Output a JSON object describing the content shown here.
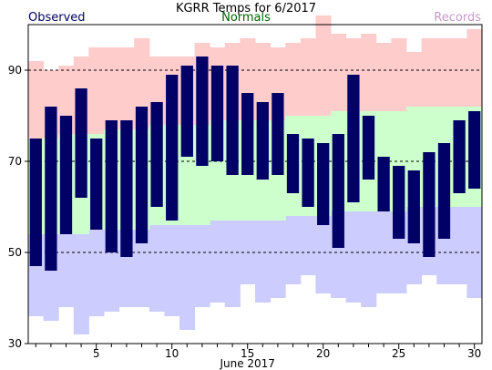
{
  "header": {
    "title": "KGRR Temps for 6/2017",
    "legend_observed": "Observed",
    "legend_normals": "Normals",
    "legend_records": "Records"
  },
  "colors": {
    "observed": "#000066",
    "normals_band": "#ccffcc",
    "record_high_band": "#ffcccc",
    "record_low_band": "#ccccff",
    "legend_observed": "#000066",
    "legend_normals": "#006600",
    "legend_records": "#cc99cc"
  },
  "chart_data": {
    "type": "bar",
    "title": "KGRR Temps for 6/2017",
    "xlabel": "June 2017",
    "ylabel": "",
    "xlim": [
      0.5,
      30.5
    ],
    "ylim": [
      30,
      100
    ],
    "x_ticks": [
      5,
      10,
      15,
      20,
      25,
      30
    ],
    "y_ticks": [
      30,
      50,
      70,
      90
    ],
    "gridlines_dashed_at": [
      50,
      70,
      90
    ],
    "days": [
      1,
      2,
      3,
      4,
      5,
      6,
      7,
      8,
      9,
      10,
      11,
      12,
      13,
      14,
      15,
      16,
      17,
      18,
      19,
      20,
      21,
      22,
      23,
      24,
      25,
      26,
      27,
      28,
      29,
      30
    ],
    "series": [
      {
        "name": "Observed high",
        "values": [
          75,
          82,
          80,
          86,
          75,
          79,
          79,
          82,
          83,
          89,
          91,
          93,
          91,
          91,
          85,
          83,
          85,
          76,
          75,
          74,
          76,
          89,
          80,
          71,
          69,
          68,
          72,
          74,
          79,
          81
        ]
      },
      {
        "name": "Observed low",
        "values": [
          47,
          46,
          54,
          62,
          55,
          50,
          49,
          52,
          60,
          57,
          71,
          69,
          70,
          67,
          67,
          66,
          67,
          63,
          60,
          56,
          51,
          61,
          66,
          59,
          53,
          52,
          49,
          53,
          63,
          64
        ]
      },
      {
        "name": "Normal high",
        "values": [
          75,
          75,
          76,
          76,
          76,
          77,
          77,
          77,
          78,
          78,
          78,
          78,
          79,
          79,
          79,
          79,
          79,
          80,
          80,
          80,
          81,
          81,
          81,
          81,
          81,
          82,
          82,
          82,
          82,
          82
        ]
      },
      {
        "name": "Normal low",
        "values": [
          54,
          54,
          54,
          54,
          55,
          55,
          55,
          55,
          56,
          56,
          56,
          56,
          57,
          57,
          57,
          57,
          57,
          58,
          58,
          58,
          59,
          59,
          59,
          59,
          59,
          60,
          60,
          60,
          60,
          60
        ]
      },
      {
        "name": "Record high",
        "values": [
          92,
          90,
          91,
          93,
          95,
          95,
          95,
          97,
          93,
          93,
          93,
          96,
          95,
          96,
          97,
          96,
          95,
          96,
          97,
          102,
          98,
          97,
          98,
          96,
          97,
          94,
          97,
          97,
          97,
          99
        ]
      },
      {
        "name": "Record low",
        "values": [
          36,
          35,
          38,
          32,
          36,
          37,
          38,
          38,
          37,
          36,
          33,
          38,
          39,
          38,
          43,
          39,
          40,
          43,
          45,
          41,
          40,
          39,
          38,
          41,
          41,
          43,
          45,
          43,
          43,
          40
        ]
      }
    ]
  }
}
